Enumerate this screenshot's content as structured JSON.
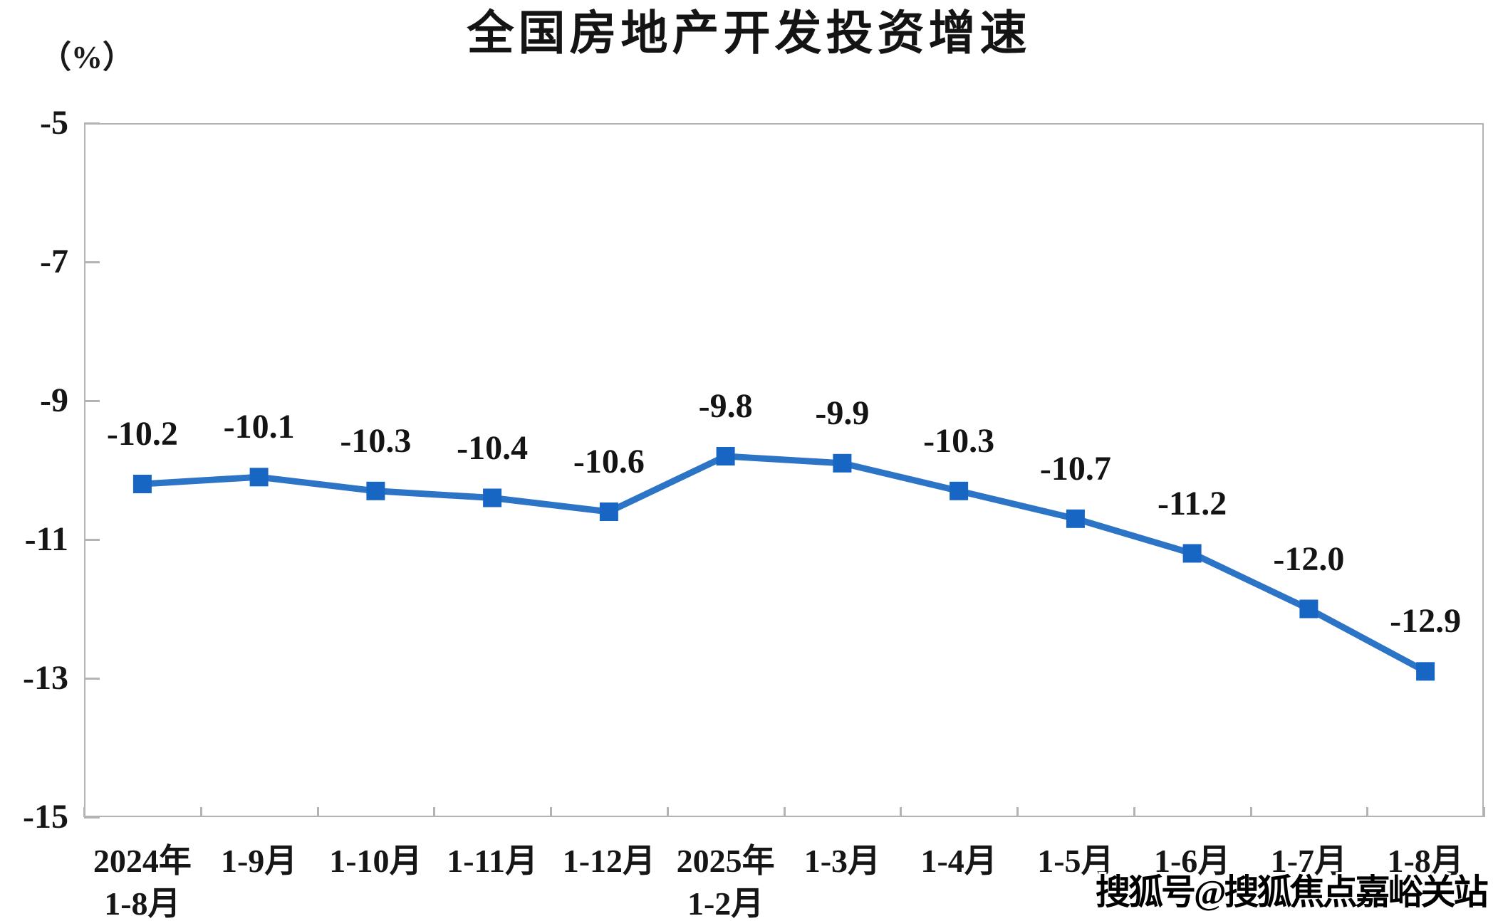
{
  "page": {
    "background": "#ffffff"
  },
  "watermark": {
    "text": "搜狐号@搜狐焦点嘉峪关站"
  },
  "chart_data": {
    "type": "line",
    "title": "全国房地产开发投资增速",
    "unit_label": "（%）",
    "categories": [
      "2024年\n1-8月",
      "1-9月",
      "1-10月",
      "1-11月",
      "1-12月",
      "2025年\n1-2月",
      "1-3月",
      "1-4月",
      "1-5月",
      "1-6月",
      "1-7月",
      "1-8月"
    ],
    "values": [
      -10.2,
      -10.1,
      -10.3,
      -10.4,
      -10.6,
      -9.8,
      -9.9,
      -10.3,
      -10.7,
      -11.2,
      -12.0,
      -12.9
    ],
    "data_labels": [
      "-10.2",
      "-10.1",
      "-10.3",
      "-10.4",
      "-10.6",
      "-9.8",
      "-9.9",
      "-10.3",
      "-10.7",
      "-11.2",
      "-12.0",
      "-12.9"
    ],
    "ylim": [
      -15,
      -5
    ],
    "y_ticks": [
      -5,
      -7,
      -9,
      -11,
      -13,
      -15
    ],
    "grid": false,
    "legend": "none",
    "marker": "square",
    "colors": {
      "line": "#2c74c6",
      "marker": "#1866c4",
      "axis": "#b3b3b3",
      "text": "#161616"
    }
  }
}
